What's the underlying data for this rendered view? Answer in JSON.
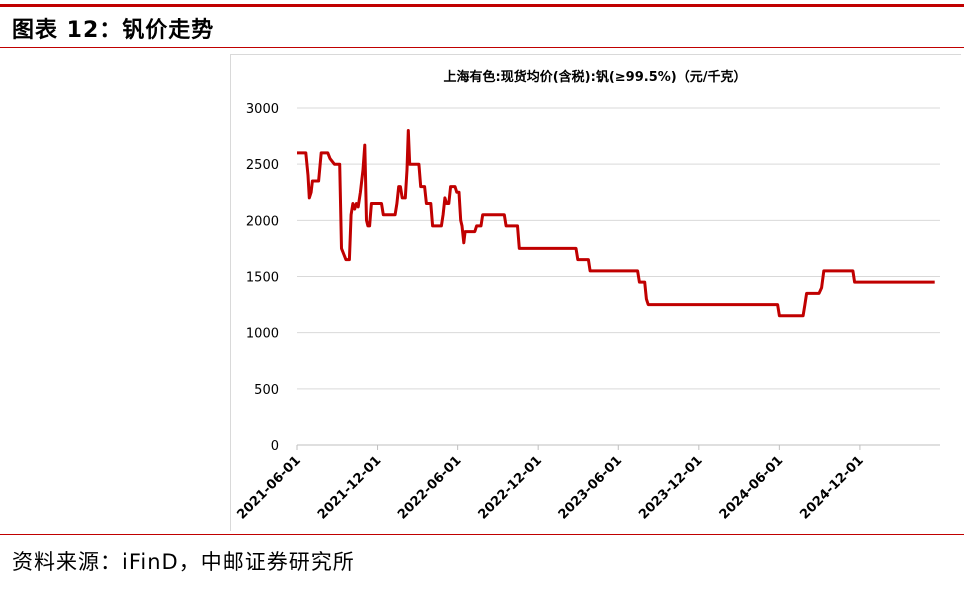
{
  "figure": {
    "title": "图表 12：钒价走势",
    "source": "资料来源：iFinD，中邮证券研究所"
  },
  "colors": {
    "accent": "#c00000",
    "series": "#c00000",
    "grid": "#d9d9d9"
  },
  "chart_data": {
    "type": "line",
    "title": "上海有色:现货均价(含税):钒(≥99.5%)（元/千克）",
    "xlabel": "",
    "ylabel": "",
    "ylim": [
      0,
      3000
    ],
    "yticks": [
      "0",
      "500",
      "1000",
      "1500",
      "2000",
      "2500",
      "3000"
    ],
    "xticks": [
      "2021-06-01",
      "2021-12-01",
      "2022-06-01",
      "2022-12-01",
      "2023-06-01",
      "2023-12-01",
      "2024-06-01",
      "2024-12-01"
    ],
    "grid": true,
    "legend": "none",
    "series": [
      {
        "name": "",
        "points": [
          [
            "2021-06-01",
            2600
          ],
          [
            "2021-06-21",
            2600
          ],
          [
            "2021-06-26",
            2400
          ],
          [
            "2021-06-29",
            2200
          ],
          [
            "2021-07-03",
            2250
          ],
          [
            "2021-07-06",
            2350
          ],
          [
            "2021-07-20",
            2350
          ],
          [
            "2021-07-26",
            2600
          ],
          [
            "2021-08-10",
            2600
          ],
          [
            "2021-08-15",
            2550
          ],
          [
            "2021-08-25",
            2500
          ],
          [
            "2021-09-06",
            2500
          ],
          [
            "2021-09-10",
            1750
          ],
          [
            "2021-09-15",
            1700
          ],
          [
            "2021-09-20",
            1650
          ],
          [
            "2021-09-28",
            1650
          ],
          [
            "2021-10-02",
            2050
          ],
          [
            "2021-10-06",
            2150
          ],
          [
            "2021-10-10",
            2100
          ],
          [
            "2021-10-14",
            2150
          ],
          [
            "2021-10-18",
            2120
          ],
          [
            "2021-10-23",
            2250
          ],
          [
            "2021-10-29",
            2450
          ],
          [
            "2021-11-02",
            2670
          ],
          [
            "2021-11-06",
            2000
          ],
          [
            "2021-11-09",
            1950
          ],
          [
            "2021-11-13",
            1950
          ],
          [
            "2021-11-17",
            2150
          ],
          [
            "2021-12-10",
            2150
          ],
          [
            "2021-12-14",
            2050
          ],
          [
            "2022-01-10",
            2050
          ],
          [
            "2022-01-14",
            2150
          ],
          [
            "2022-01-18",
            2300
          ],
          [
            "2022-01-22",
            2300
          ],
          [
            "2022-01-26",
            2200
          ],
          [
            "2022-02-02",
            2200
          ],
          [
            "2022-02-06",
            2450
          ],
          [
            "2022-02-09",
            2800
          ],
          [
            "2022-02-12",
            2500
          ],
          [
            "2022-03-05",
            2500
          ],
          [
            "2022-03-09",
            2300
          ],
          [
            "2022-03-18",
            2300
          ],
          [
            "2022-03-22",
            2150
          ],
          [
            "2022-04-01",
            2150
          ],
          [
            "2022-04-05",
            1950
          ],
          [
            "2022-04-25",
            1950
          ],
          [
            "2022-04-29",
            2050
          ],
          [
            "2022-05-03",
            2200
          ],
          [
            "2022-05-07",
            2150
          ],
          [
            "2022-05-12",
            2150
          ],
          [
            "2022-05-16",
            2300
          ],
          [
            "2022-05-26",
            2300
          ],
          [
            "2022-05-30",
            2250
          ],
          [
            "2022-06-04",
            2250
          ],
          [
            "2022-06-08",
            2000
          ],
          [
            "2022-06-11",
            1950
          ],
          [
            "2022-06-15",
            1800
          ],
          [
            "2022-06-18",
            1900
          ],
          [
            "2022-07-10",
            1900
          ],
          [
            "2022-07-14",
            1950
          ],
          [
            "2022-07-24",
            1950
          ],
          [
            "2022-07-28",
            2050
          ],
          [
            "2022-09-15",
            2050
          ],
          [
            "2022-09-19",
            1950
          ],
          [
            "2022-10-15",
            1950
          ],
          [
            "2022-10-19",
            1750
          ],
          [
            "2023-02-25",
            1750
          ],
          [
            "2023-03-01",
            1650
          ],
          [
            "2023-03-25",
            1650
          ],
          [
            "2023-03-29",
            1550
          ],
          [
            "2023-07-15",
            1550
          ],
          [
            "2023-07-19",
            1450
          ],
          [
            "2023-07-31",
            1450
          ],
          [
            "2023-08-04",
            1300
          ],
          [
            "2023-08-08",
            1250
          ],
          [
            "2024-05-28",
            1250
          ],
          [
            "2024-06-01",
            1150
          ],
          [
            "2024-07-25",
            1150
          ],
          [
            "2024-07-29",
            1250
          ],
          [
            "2024-08-02",
            1350
          ],
          [
            "2024-08-30",
            1350
          ],
          [
            "2024-09-05",
            1400
          ],
          [
            "2024-09-10",
            1550
          ],
          [
            "2024-11-15",
            1550
          ],
          [
            "2024-11-19",
            1450
          ],
          [
            "2025-05-20",
            1450
          ]
        ]
      }
    ]
  }
}
